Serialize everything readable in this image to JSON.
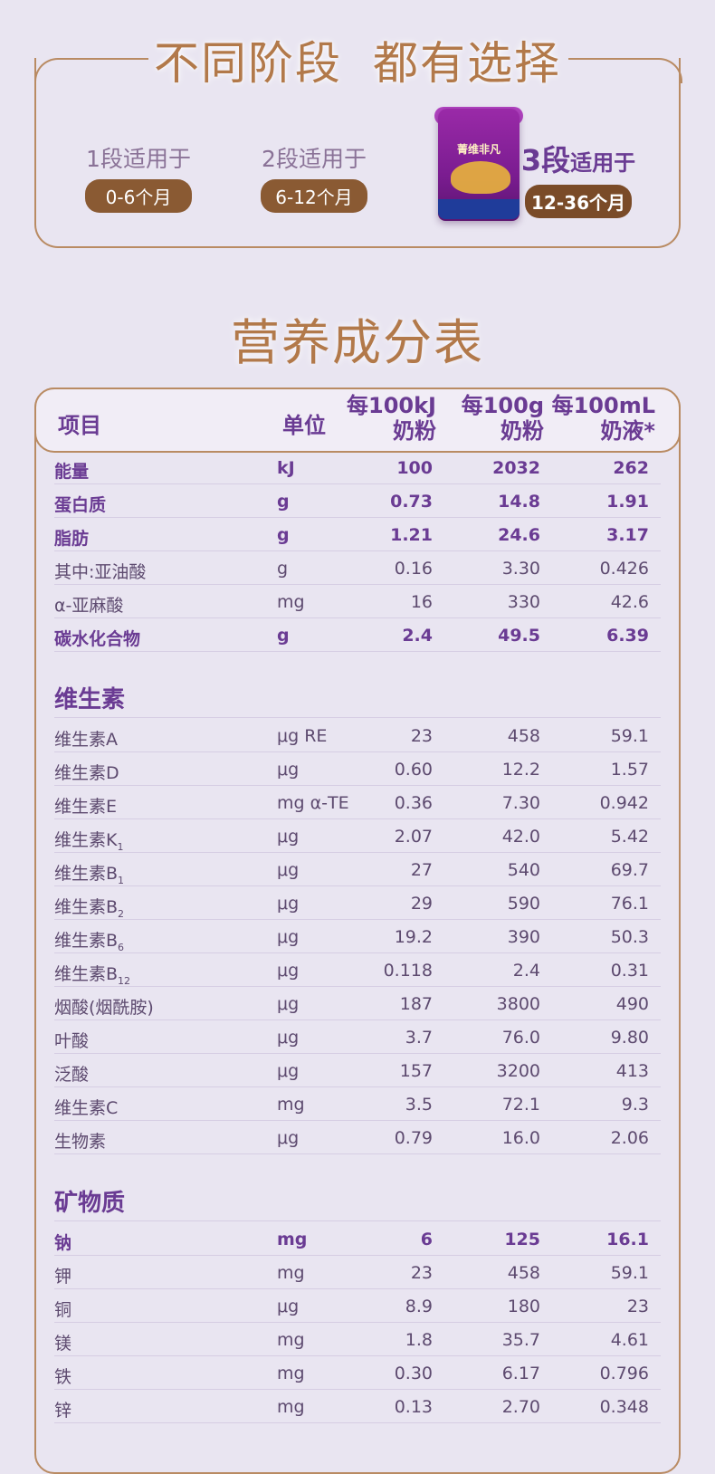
{
  "stages": {
    "title_left": "不同阶段",
    "title_right": "都有选择",
    "stage1": {
      "label": "1段适用于",
      "range": "0-6个月"
    },
    "stage2": {
      "label": "2段适用于",
      "range": "6-12个月"
    },
    "stage3": {
      "num": "3段",
      "label": "适用于",
      "range": "12-36个月"
    },
    "product_brand": "菁维非凡"
  },
  "nutrition": {
    "title": "营养成分表",
    "headers": {
      "item": "项目",
      "unit": "单位",
      "col1_l1": "每100kJ",
      "col1_l2": "奶粉",
      "col2_l1": "每100g",
      "col2_l2": "奶粉",
      "col3_l1": "每100mL",
      "col3_l2": "奶液*"
    },
    "basic": [
      {
        "name": "能量",
        "unit": "kJ",
        "v1": "100",
        "v2": "2032",
        "v3": "262",
        "bold": true
      },
      {
        "name": "蛋白质",
        "unit": "g",
        "v1": "0.73",
        "v2": "14.8",
        "v3": "1.91",
        "bold": true
      },
      {
        "name": "脂肪",
        "unit": "g",
        "v1": "1.21",
        "v2": "24.6",
        "v3": "3.17",
        "bold": true
      },
      {
        "name": "其中:亚油酸",
        "unit": "g",
        "v1": "0.16",
        "v2": "3.30",
        "v3": "0.426",
        "bold": false
      },
      {
        "name": "α-亚麻酸",
        "unit": "mg",
        "v1": "16",
        "v2": "330",
        "v3": "42.6",
        "bold": false
      },
      {
        "name": "碳水化合物",
        "unit": "g",
        "v1": "2.4",
        "v2": "49.5",
        "v3": "6.39",
        "bold": true
      }
    ],
    "vitamins_title": "维生素",
    "vitamins": [
      {
        "name": "维生素A",
        "sub": "",
        "unit": "μg RE",
        "v1": "23",
        "v2": "458",
        "v3": "59.1"
      },
      {
        "name": "维生素D",
        "sub": "",
        "unit": "μg",
        "v1": "0.60",
        "v2": "12.2",
        "v3": "1.57"
      },
      {
        "name": "维生素E",
        "sub": "",
        "unit": "mg α-TE",
        "v1": "0.36",
        "v2": "7.30",
        "v3": "0.942"
      },
      {
        "name": "维生素K",
        "sub": "1",
        "unit": "μg",
        "v1": "2.07",
        "v2": "42.0",
        "v3": "5.42"
      },
      {
        "name": "维生素B",
        "sub": "1",
        "unit": "μg",
        "v1": "27",
        "v2": "540",
        "v3": "69.7"
      },
      {
        "name": "维生素B",
        "sub": "2",
        "unit": "μg",
        "v1": "29",
        "v2": "590",
        "v3": "76.1"
      },
      {
        "name": "维生素B",
        "sub": "6",
        "unit": "μg",
        "v1": "19.2",
        "v2": "390",
        "v3": "50.3"
      },
      {
        "name": "维生素B",
        "sub": "12",
        "unit": "μg",
        "v1": "0.118",
        "v2": "2.4",
        "v3": "0.31"
      },
      {
        "name": "烟酸(烟酰胺)",
        "sub": "",
        "unit": "μg",
        "v1": "187",
        "v2": "3800",
        "v3": "490"
      },
      {
        "name": "叶酸",
        "sub": "",
        "unit": "μg",
        "v1": "3.7",
        "v2": "76.0",
        "v3": "9.80"
      },
      {
        "name": "泛酸",
        "sub": "",
        "unit": "μg",
        "v1": "157",
        "v2": "3200",
        "v3": "413"
      },
      {
        "name": "维生素C",
        "sub": "",
        "unit": "mg",
        "v1": "3.5",
        "v2": "72.1",
        "v3": "9.3"
      },
      {
        "name": "生物素",
        "sub": "",
        "unit": "μg",
        "v1": "0.79",
        "v2": "16.0",
        "v3": "2.06"
      }
    ],
    "minerals_title": "矿物质",
    "minerals": [
      {
        "name": "钠",
        "unit": "mg",
        "v1": "6",
        "v2": "125",
        "v3": "16.1",
        "bold": true
      },
      {
        "name": "钾",
        "unit": "mg",
        "v1": "23",
        "v2": "458",
        "v3": "59.1",
        "bold": false
      },
      {
        "name": "铜",
        "unit": "μg",
        "v1": "8.9",
        "v2": "180",
        "v3": "23",
        "bold": false
      },
      {
        "name": "镁",
        "unit": "mg",
        "v1": "1.8",
        "v2": "35.7",
        "v3": "4.61",
        "bold": false
      },
      {
        "name": "铁",
        "unit": "mg",
        "v1": "0.30",
        "v2": "6.17",
        "v3": "0.796",
        "bold": false
      },
      {
        "name": "锌",
        "unit": "mg",
        "v1": "0.13",
        "v2": "2.70",
        "v3": "0.348",
        "bold": false
      }
    ]
  }
}
